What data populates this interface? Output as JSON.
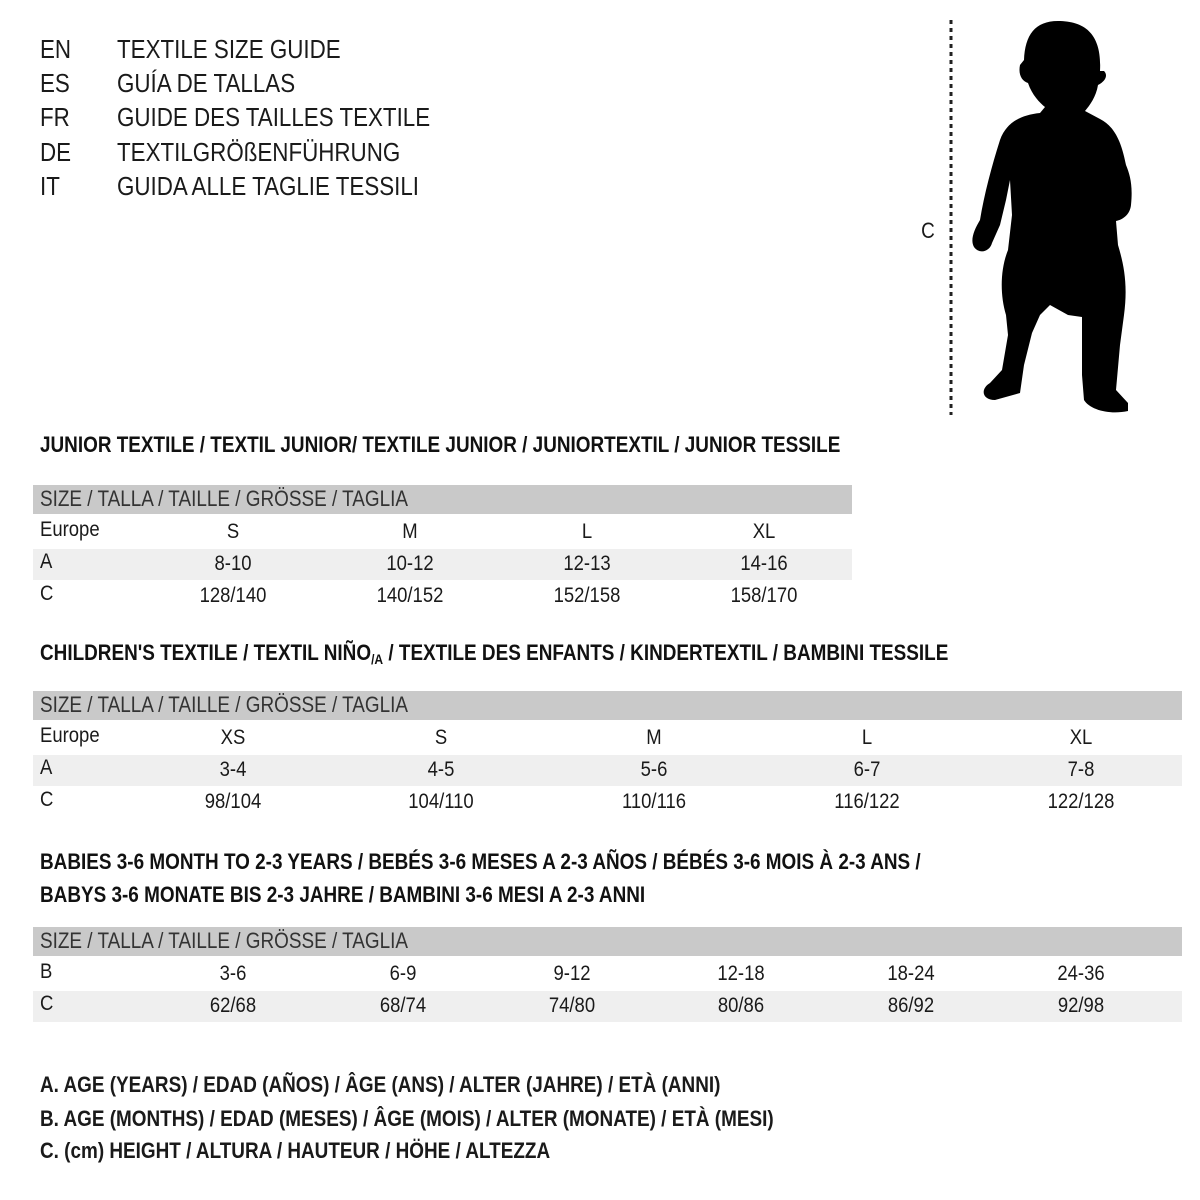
{
  "title_lines": [
    {
      "code": "EN",
      "text": "TEXTILE SIZE GUIDE"
    },
    {
      "code": "ES",
      "text": "GUÍA DE TALLAS"
    },
    {
      "code": "FR",
      "text": "GUIDE DES TAILLES TEXTILE"
    },
    {
      "code": "DE",
      "text": "TEXTILGRÖßENFÜHRUNG"
    },
    {
      "code": "IT",
      "text": "GUIDA ALLE TAGLIE TESSILI"
    }
  ],
  "figure": {
    "measure_label": "C",
    "icon": "child-silhouette-icon"
  },
  "colors": {
    "header_row": "#c9c9c9",
    "shaded_row": "#efefef",
    "text": "#1a1a1a"
  },
  "sections": [
    {
      "heading": [
        "JUNIOR TEXTILE / TEXTIL JUNIOR/ TEXTILE JUNIOR / JUNIORTEXTIL / JUNIOR TESSILE"
      ],
      "table": {
        "header": "SIZE / TALLA / TAILLE / GRÖSSE / TAGLIA",
        "rows": [
          {
            "label": "Europe",
            "values": [
              "S",
              "M",
              "L",
              "XL"
            ]
          },
          {
            "label": "A",
            "values": [
              "8-10",
              "10-12",
              "12-13",
              "14-16"
            ]
          },
          {
            "label": "C",
            "values": [
              "128/140",
              "140/152",
              "152/158",
              "158/170"
            ]
          }
        ]
      }
    },
    {
      "heading": [
        "CHILDREN'S TEXTILE / TEXTIL NIÑO",
        "/A",
        " / TEXTILE DES ENFANTS / KINDERTEXTIL / BAMBINI TESSILE"
      ],
      "table": {
        "header": "SIZE / TALLA / TAILLE / GRÖSSE / TAGLIA",
        "rows": [
          {
            "label": "Europe",
            "values": [
              "XS",
              "S",
              "M",
              "L",
              "XL"
            ]
          },
          {
            "label": "A",
            "values": [
              "3-4",
              "4-5",
              "5-6",
              "6-7",
              "7-8"
            ]
          },
          {
            "label": "C",
            "values": [
              "98/104",
              "104/110",
              "110/116",
              "116/122",
              "122/128"
            ]
          }
        ]
      }
    },
    {
      "heading": [
        "BABIES 3-6 MONTH TO 2-3 YEARS / BEBÉS 3-6 MESES A 2-3 AÑOS / BÉBÉS 3-6 MOIS À 2-3 ANS /",
        "BABYS 3-6 MONATE BIS 2-3 JAHRE / BAMBINI 3-6 MESI A 2-3 ANNI"
      ],
      "table": {
        "header": "SIZE / TALLA / TAILLE / GRÖSSE / TAGLIA",
        "rows": [
          {
            "label": "B",
            "values": [
              "3-6",
              "6-9",
              "9-12",
              "12-18",
              "18-24",
              "24-36"
            ]
          },
          {
            "label": "C",
            "values": [
              "62/68",
              "68/74",
              "74/80",
              "80/86",
              "86/92",
              "92/98"
            ]
          }
        ]
      }
    }
  ],
  "legend": [
    "A. AGE (YEARS) / EDAD (AÑOS) / ÂGE (ANS) / ALTER (JAHRE) / ETÀ (ANNI)",
    "B. AGE (MONTHS) / EDAD (MESES) / ÂGE (MOIS) / ALTER (MONATE) / ETÀ (MESI)",
    "C. (cm) HEIGHT / ALTURA / HAUTEUR / HÖHE / ALTEZZA"
  ]
}
